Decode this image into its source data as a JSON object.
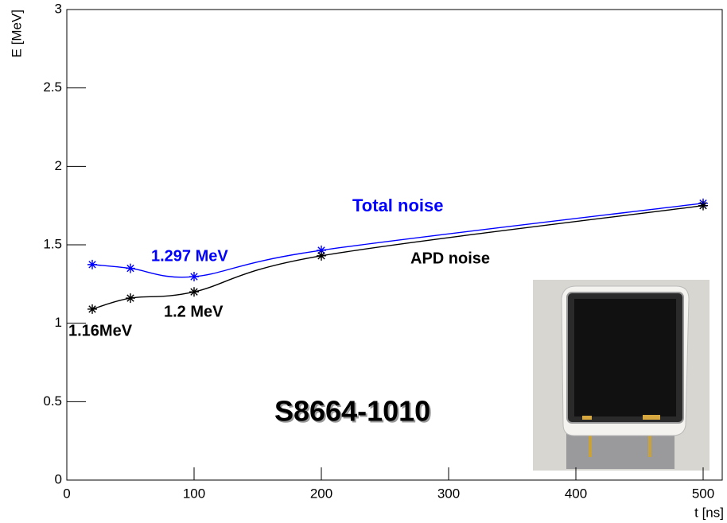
{
  "chart_data": {
    "type": "line",
    "x_label": "t [ns]",
    "y_label": "E [MeV]",
    "xlim": [
      0,
      515
    ],
    "ylim": [
      0,
      3
    ],
    "xticks": [
      0,
      100,
      200,
      300,
      400,
      500
    ],
    "yticks": [
      0,
      0.5,
      1,
      1.5,
      2,
      2.5,
      3
    ],
    "series": [
      {
        "name": "Total noise",
        "color": "#0000ff",
        "x": [
          20,
          50,
          100,
          200,
          500
        ],
        "values": [
          1.374,
          1.35,
          1.297,
          1.465,
          1.765
        ]
      },
      {
        "name": "APD noise",
        "color": "#000000",
        "x": [
          20,
          50,
          100,
          200,
          500
        ],
        "values": [
          1.09,
          1.16,
          1.2,
          1.43,
          1.75
        ]
      }
    ],
    "annotations": [
      {
        "text": "1.297 MeV",
        "color": "#0000ff"
      },
      {
        "text": "1.2 MeV",
        "color": "#000000"
      },
      {
        "text": "1.16MeV",
        "color": "#000000"
      },
      {
        "text": "S8664-1010",
        "color": "#000000"
      }
    ]
  }
}
